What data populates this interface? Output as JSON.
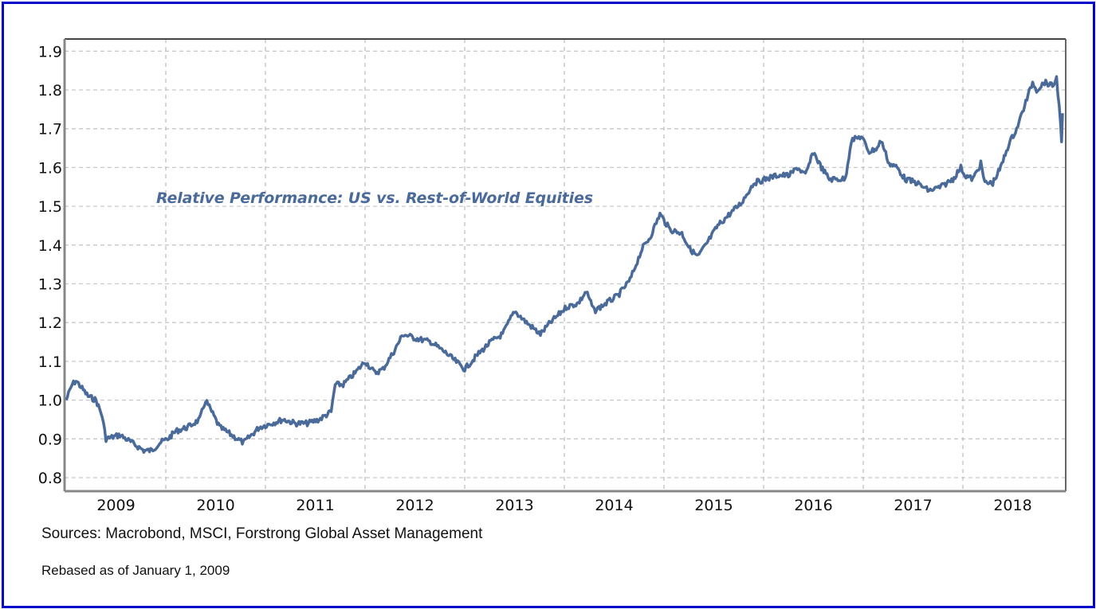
{
  "chart_data": {
    "type": "line",
    "title": "Relative Performance: US vs. Rest-of-World Equities",
    "xlabel": "",
    "ylabel": "",
    "xlim": [
      2009,
      2019
    ],
    "ylim": [
      0.78,
      1.93
    ],
    "yticks": [
      "0.8",
      "0.9",
      "1.0",
      "1.1",
      "1.2",
      "1.3",
      "1.4",
      "1.5",
      "1.6",
      "1.7",
      "1.8",
      "1.9"
    ],
    "xtick_labels": [
      "2009",
      "2010",
      "2011",
      "2012",
      "2013",
      "2014",
      "2015",
      "2016",
      "2017",
      "2018"
    ],
    "grid": true,
    "line_color": "#4a6a9a",
    "series": [
      {
        "name": "US vs. Rest-of-World Equities",
        "x": [
          2009.0,
          2009.06,
          2009.1,
          2009.22,
          2009.3,
          2009.36,
          2009.4,
          2009.54,
          2009.66,
          2009.78,
          2009.86,
          2009.94,
          2010.02,
          2010.1,
          2010.22,
          2010.34,
          2010.4,
          2010.46,
          2010.54,
          2010.66,
          2010.78,
          2010.86,
          2010.94,
          2011.06,
          2011.18,
          2011.3,
          2011.42,
          2011.54,
          2011.66,
          2011.7,
          2011.78,
          2011.9,
          2012.0,
          2012.1,
          2012.18,
          2012.3,
          2012.38,
          2012.5,
          2012.66,
          2012.82,
          2013.0,
          2013.14,
          2013.26,
          2013.38,
          2013.5,
          2013.62,
          2013.76,
          2013.86,
          2014.02,
          2014.14,
          2014.22,
          2014.3,
          2014.42,
          2014.54,
          2014.66,
          2014.78,
          2014.86,
          2014.96,
          2015.06,
          2015.18,
          2015.26,
          2015.34,
          2015.42,
          2015.54,
          2015.66,
          2015.78,
          2015.9,
          2016.02,
          2016.14,
          2016.26,
          2016.34,
          2016.42,
          2016.5,
          2016.58,
          2016.66,
          2016.82,
          2016.88,
          2016.98,
          2017.06,
          2017.14,
          2017.18,
          2017.26,
          2017.34,
          2017.42,
          2017.54,
          2017.66,
          2017.78,
          2017.9,
          2017.98,
          2018.02,
          2018.1,
          2018.18,
          2018.22,
          2018.3,
          2018.38,
          2018.46,
          2018.54,
          2018.62,
          2018.7,
          2018.74,
          2018.82,
          2018.9,
          2018.94,
          2018.98,
          2018.99,
          2019.0
        ],
        "values": [
          1.0,
          1.04,
          1.05,
          1.01,
          1.0,
          0.96,
          0.9,
          0.91,
          0.89,
          0.87,
          0.87,
          0.89,
          0.9,
          0.92,
          0.93,
          0.95,
          1.0,
          0.97,
          0.93,
          0.91,
          0.89,
          0.91,
          0.93,
          0.94,
          0.95,
          0.94,
          0.94,
          0.95,
          0.97,
          1.04,
          1.04,
          1.07,
          1.1,
          1.07,
          1.08,
          1.13,
          1.17,
          1.16,
          1.15,
          1.12,
          1.08,
          1.12,
          1.15,
          1.17,
          1.23,
          1.2,
          1.17,
          1.2,
          1.24,
          1.25,
          1.28,
          1.23,
          1.25,
          1.27,
          1.31,
          1.39,
          1.42,
          1.48,
          1.44,
          1.43,
          1.39,
          1.37,
          1.4,
          1.45,
          1.48,
          1.51,
          1.56,
          1.57,
          1.58,
          1.58,
          1.6,
          1.58,
          1.64,
          1.6,
          1.57,
          1.57,
          1.67,
          1.68,
          1.64,
          1.65,
          1.67,
          1.61,
          1.6,
          1.57,
          1.56,
          1.54,
          1.55,
          1.57,
          1.6,
          1.58,
          1.57,
          1.61,
          1.56,
          1.56,
          1.6,
          1.66,
          1.7,
          1.76,
          1.82,
          1.8,
          1.82,
          1.81,
          1.83,
          1.72,
          1.66,
          1.74
        ]
      }
    ]
  },
  "footer": {
    "sources": "Sources: Macrobond, MSCI, Forstrong Global Asset Management",
    "rebased": "Rebased as of January 1, 2009"
  }
}
